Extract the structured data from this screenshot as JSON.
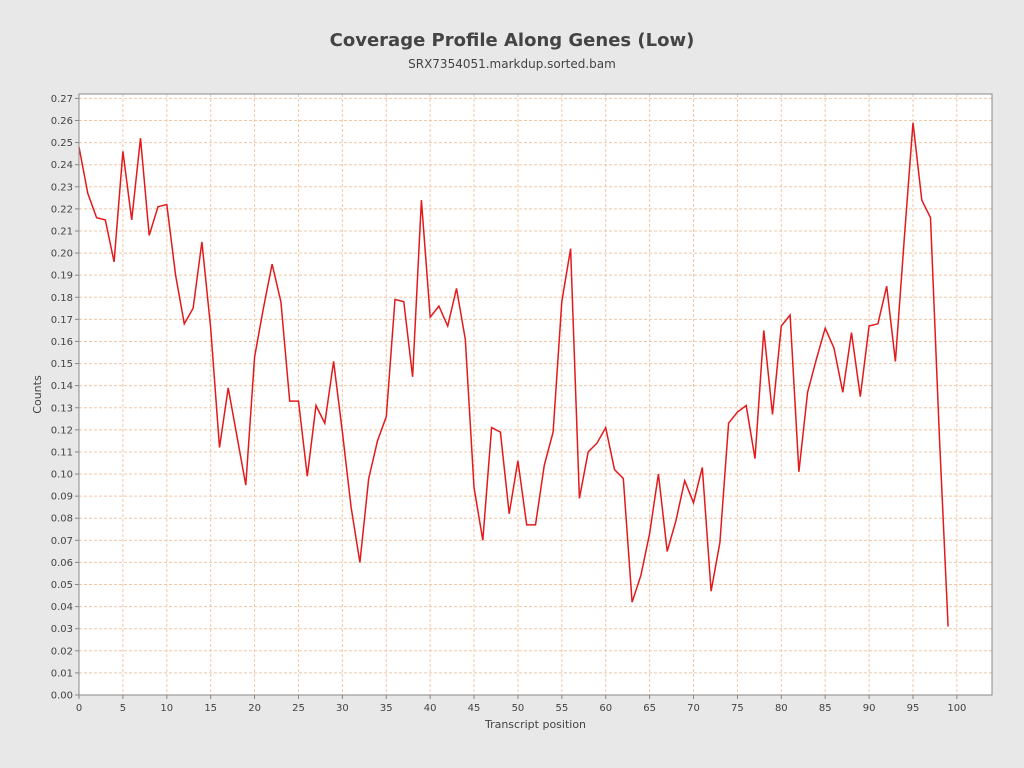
{
  "chart_data": {
    "type": "line",
    "title": "Coverage Profile Along Genes (Low)",
    "subtitle": "SRX7354051.markdup.sorted.bam",
    "xlabel": "Transcript position",
    "ylabel": "Counts",
    "xlim": [
      0,
      104
    ],
    "ylim": [
      0,
      0.272
    ],
    "xticks": [
      0,
      5,
      10,
      15,
      20,
      25,
      30,
      35,
      40,
      45,
      50,
      55,
      60,
      65,
      70,
      75,
      80,
      85,
      90,
      95,
      100
    ],
    "yticks": [
      0.0,
      0.01,
      0.02,
      0.03,
      0.04,
      0.05,
      0.06,
      0.07,
      0.08,
      0.09,
      0.1,
      0.11,
      0.12,
      0.13,
      0.14,
      0.15,
      0.16,
      0.17,
      0.18,
      0.19,
      0.2,
      0.21,
      0.22,
      0.23,
      0.24,
      0.25,
      0.26,
      0.27
    ],
    "grid": true,
    "series": [
      {
        "color": "#e31a1c",
        "x": [
          0,
          1,
          2,
          3,
          4,
          5,
          6,
          7,
          8,
          9,
          10,
          11,
          12,
          13,
          14,
          15,
          16,
          17,
          18,
          19,
          20,
          21,
          22,
          23,
          24,
          25,
          26,
          27,
          28,
          29,
          30,
          31,
          32,
          33,
          34,
          35,
          36,
          37,
          38,
          39,
          40,
          41,
          42,
          43,
          44,
          45,
          46,
          47,
          48,
          49,
          50,
          51,
          52,
          53,
          54,
          55,
          56,
          57,
          58,
          59,
          60,
          61,
          62,
          63,
          64,
          65,
          66,
          67,
          68,
          69,
          70,
          71,
          72,
          73,
          74,
          75,
          76,
          77,
          78,
          79,
          80,
          81,
          82,
          83,
          84,
          85,
          86,
          87,
          88,
          89,
          90,
          91,
          92,
          93,
          94,
          95,
          96,
          97,
          98,
          99
        ],
        "y": [
          0.248,
          0.227,
          0.216,
          0.215,
          0.196,
          0.246,
          0.215,
          0.252,
          0.208,
          0.221,
          0.222,
          0.19,
          0.168,
          0.175,
          0.205,
          0.166,
          0.112,
          0.139,
          0.117,
          0.095,
          0.153,
          0.175,
          0.195,
          0.178,
          0.133,
          0.133,
          0.099,
          0.131,
          0.123,
          0.151,
          0.119,
          0.085,
          0.06,
          0.098,
          0.115,
          0.126,
          0.179,
          0.178,
          0.144,
          0.224,
          0.171,
          0.176,
          0.167,
          0.184,
          0.161,
          0.094,
          0.07,
          0.121,
          0.119,
          0.082,
          0.106,
          0.077,
          0.077,
          0.104,
          0.119,
          0.178,
          0.202,
          0.089,
          0.11,
          0.114,
          0.121,
          0.102,
          0.098,
          0.042,
          0.054,
          0.073,
          0.1,
          0.065,
          0.079,
          0.097,
          0.087,
          0.103,
          0.047,
          0.069,
          0.123,
          0.128,
          0.131,
          0.107,
          0.165,
          0.127,
          0.167,
          0.172,
          0.101,
          0.137,
          0.152,
          0.166,
          0.157,
          0.137,
          0.164,
          0.135,
          0.167,
          0.168,
          0.185,
          0.151,
          0.206,
          0.259,
          0.224,
          0.216,
          0.118,
          0.031
        ]
      }
    ]
  }
}
